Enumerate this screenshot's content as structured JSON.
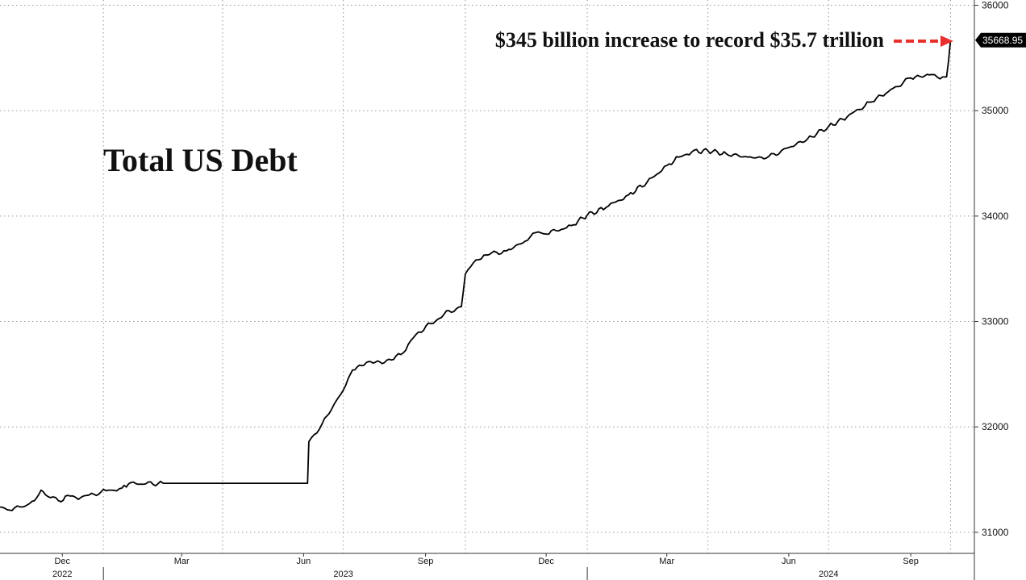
{
  "chart_data": {
    "type": "line",
    "title": "Total US Debt",
    "annotation": "$345 billion increase to record $35.7 trillion",
    "annotation_arrow_color": "#e8312f",
    "line_color": "#000000",
    "last_value_label": "35668.95",
    "ylim": [
      30800,
      36050
    ],
    "y_ticks": [
      31000,
      32000,
      33000,
      34000,
      35000,
      36000
    ],
    "y_tick_labels": [
      "31000",
      "32000",
      "33000",
      "34000",
      "35000",
      "36000"
    ],
    "grid": true,
    "x_ticks": [
      {
        "label": "Dec",
        "date": "2022-12-01"
      },
      {
        "label": "Mar",
        "date": "2023-03-01"
      },
      {
        "label": "Jun",
        "date": "2023-06-01"
      },
      {
        "label": "Sep",
        "date": "2023-09-01"
      },
      {
        "label": "Dec",
        "date": "2023-12-01"
      },
      {
        "label": "Mar",
        "date": "2024-03-01"
      },
      {
        "label": "Jun",
        "date": "2024-06-01"
      },
      {
        "label": "Sep",
        "date": "2024-09-01"
      }
    ],
    "x_grid_dates": [
      "2023-01-01",
      "2023-04-01",
      "2023-07-01",
      "2023-10-01",
      "2024-01-01",
      "2024-04-01",
      "2024-07-01",
      "2024-10-01"
    ],
    "years": [
      {
        "label": "2022",
        "date": "2022-12-01"
      },
      {
        "label": "2023",
        "date": "2023-07-01"
      },
      {
        "label": "2024",
        "date": "2024-07-01"
      }
    ],
    "year_separators": [
      "2023-01-01",
      "2024-01-01"
    ],
    "series": [
      {
        "points": [
          [
            "2022-10-15",
            31240
          ],
          [
            "2022-10-22",
            31210
          ],
          [
            "2022-11-01",
            31240
          ],
          [
            "2022-11-10",
            31300
          ],
          [
            "2022-11-15",
            31400
          ],
          [
            "2022-11-20",
            31340
          ],
          [
            "2022-11-30",
            31290
          ],
          [
            "2022-12-05",
            31350
          ],
          [
            "2022-12-15",
            31330
          ],
          [
            "2022-12-25",
            31360
          ],
          [
            "2022-12-30",
            31380
          ],
          [
            "2023-01-05",
            31400
          ],
          [
            "2023-01-15",
            31420
          ],
          [
            "2023-01-20",
            31460
          ],
          [
            "2023-02-15",
            31465
          ],
          [
            "2023-03-15",
            31465
          ],
          [
            "2023-04-15",
            31465
          ],
          [
            "2023-05-15",
            31465
          ],
          [
            "2023-05-29",
            31465
          ],
          [
            "2023-06-04",
            31465
          ],
          [
            "2023-06-05",
            31860
          ],
          [
            "2023-06-15",
            32030
          ],
          [
            "2023-07-01",
            32350
          ],
          [
            "2023-07-08",
            32540
          ],
          [
            "2023-07-20",
            32620
          ],
          [
            "2023-08-01",
            32610
          ],
          [
            "2023-08-15",
            32700
          ],
          [
            "2023-08-25",
            32880
          ],
          [
            "2023-09-05",
            32980
          ],
          [
            "2023-09-15",
            33070
          ],
          [
            "2023-09-28",
            33140
          ],
          [
            "2023-10-01",
            33450
          ],
          [
            "2023-10-05",
            33520
          ],
          [
            "2023-10-15",
            33630
          ],
          [
            "2023-11-01",
            33670
          ],
          [
            "2023-11-15",
            33760
          ],
          [
            "2023-11-25",
            33850
          ],
          [
            "2023-12-01",
            33830
          ],
          [
            "2023-12-20",
            33910
          ],
          [
            "2024-01-01",
            34010
          ],
          [
            "2024-01-15",
            34080
          ],
          [
            "2024-02-01",
            34200
          ],
          [
            "2024-02-15",
            34320
          ],
          [
            "2024-03-01",
            34480
          ],
          [
            "2024-03-10",
            34560
          ],
          [
            "2024-03-20",
            34610
          ],
          [
            "2024-04-01",
            34620
          ],
          [
            "2024-04-15",
            34590
          ],
          [
            "2024-05-01",
            34560
          ],
          [
            "2024-05-15",
            34550
          ],
          [
            "2024-06-01",
            34650
          ],
          [
            "2024-06-15",
            34730
          ],
          [
            "2024-07-01",
            34850
          ],
          [
            "2024-07-15",
            34940
          ],
          [
            "2024-08-01",
            35080
          ],
          [
            "2024-08-15",
            35180
          ],
          [
            "2024-09-01",
            35310
          ],
          [
            "2024-09-15",
            35340
          ],
          [
            "2024-09-25",
            35320
          ],
          [
            "2024-09-28",
            35320
          ],
          [
            "2024-10-01",
            35668.95
          ]
        ]
      }
    ]
  }
}
